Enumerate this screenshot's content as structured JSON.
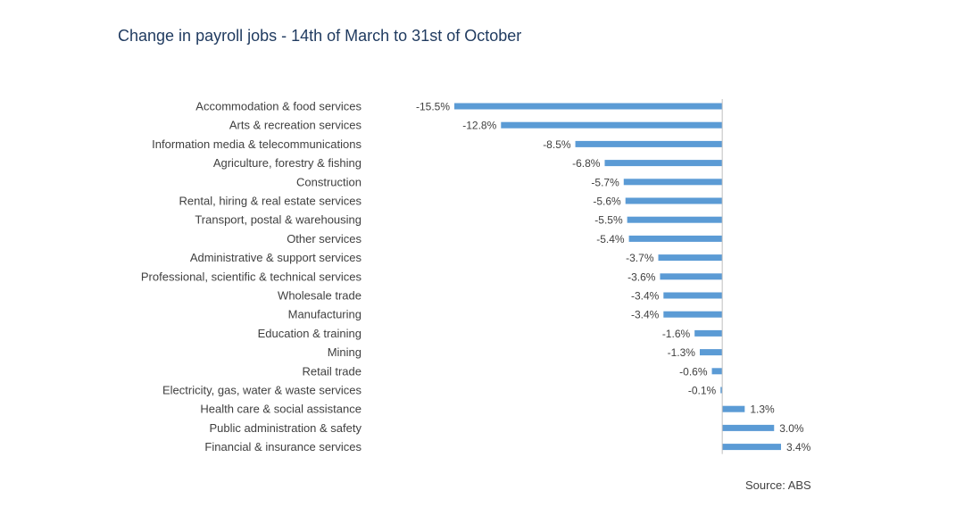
{
  "chart_data": {
    "type": "bar",
    "orientation": "horizontal",
    "title": "Change in payroll jobs - 14th of March to 31st of October",
    "source": "Source: ABS",
    "categories": [
      "Accommodation & food services",
      "Arts & recreation services",
      "Information media & telecommunications",
      "Agriculture, forestry & fishing",
      "Construction",
      "Rental, hiring & real estate services",
      "Transport, postal & warehousing",
      "Other services",
      "Administrative & support services",
      "Professional, scientific & technical services",
      "Wholesale trade",
      "Manufacturing",
      "Education & training",
      "Mining",
      "Retail trade",
      "Electricity, gas, water & waste services",
      "Health care & social assistance",
      "Public administration & safety",
      "Financial & insurance services"
    ],
    "values": [
      -15.5,
      -12.8,
      -8.5,
      -6.8,
      -5.7,
      -5.6,
      -5.5,
      -5.4,
      -3.7,
      -3.6,
      -3.4,
      -3.4,
      -1.6,
      -1.3,
      -0.6,
      -0.1,
      1.3,
      3.0,
      3.4
    ],
    "value_labels": [
      "-15.5%",
      "-12.8%",
      "-8.5%",
      "-6.8%",
      "-5.7%",
      "-5.6%",
      "-5.5%",
      "-5.4%",
      "-3.7%",
      "-3.6%",
      "-3.4%",
      "-3.4%",
      "-1.6%",
      "-1.3%",
      "-0.6%",
      "-0.1%",
      "1.3%",
      "3.0%",
      "3.4%"
    ],
    "xlim": [
      -15.5,
      3.4
    ],
    "grid": false,
    "bar_color": "#5b9bd5",
    "axis_color": "#bfbfbf",
    "text_color": "#404040",
    "title_color": "#1f3a5f"
  }
}
